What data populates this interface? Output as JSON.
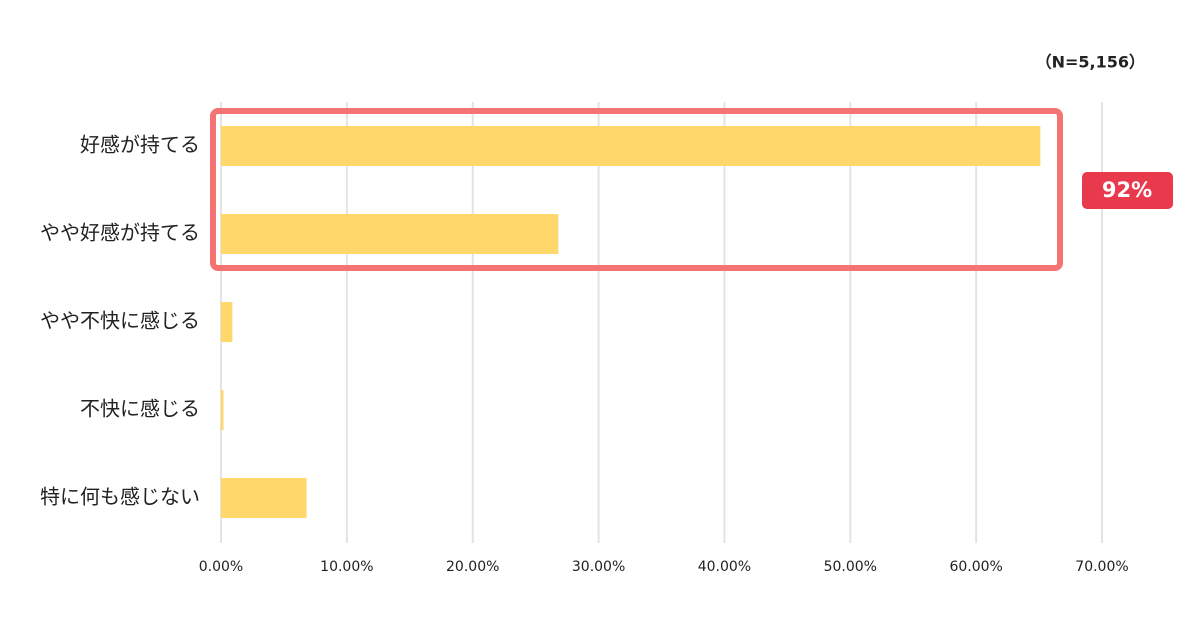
{
  "chart_data": {
    "type": "barh",
    "categories": [
      "好感が持てる",
      "やや好感が持てる",
      "やや不快に感じる",
      "不快に感じる",
      "特に何も感じない"
    ],
    "values": [
      65.1,
      26.8,
      0.9,
      0.2,
      6.8
    ],
    "color": "#fed86b",
    "xlim": [
      0,
      70
    ],
    "xticks": [
      {
        "value": 0,
        "label": "0.00%"
      },
      {
        "value": 10,
        "label": "10.00%"
      },
      {
        "value": 20,
        "label": "20.00%"
      },
      {
        "value": 30,
        "label": "30.00%"
      },
      {
        "value": 40,
        "label": "40.00%"
      },
      {
        "value": 50,
        "label": "50.00%"
      },
      {
        "value": 60,
        "label": "60.00%"
      },
      {
        "value": 70,
        "label": "70.00%"
      }
    ],
    "grid": true,
    "annotations": [
      "（N=5,156）",
      "92%"
    ]
  }
}
